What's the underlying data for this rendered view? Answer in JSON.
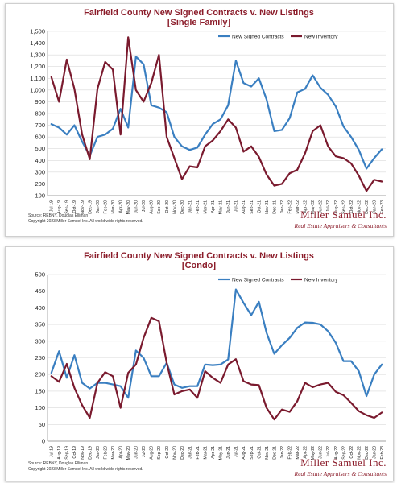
{
  "charts": [
    {
      "title_line1": "Fairfield County New Signed Contracts v. New Listings",
      "title_line2": "[Single Family]",
      "source_line1": "Source: REBNY, Douglas Elliman",
      "source_line2": "Copyright 2023 Miller Samuel Inc.  All world wide rights reserved.",
      "brand_name": "Miller Samuel Inc.",
      "brand_tagline": "Real Estate Appraisers & Consultants"
    },
    {
      "title_line1": "Fairfield County New Signed Contracts v. New Listings",
      "title_line2": "[Condo]",
      "source_line1": "Source: REBNY, Douglas Elliman",
      "source_line2": "Copyright 2023 Miller Samuel Inc.  All world wide rights reserved.",
      "brand_name": "Miller Samuel Inc.",
      "brand_tagline": "Real Estate Appraisers & Consultants"
    }
  ],
  "chart_data": [
    {
      "type": "line",
      "title": "Fairfield County New Signed Contracts v. New Listings [Single Family]",
      "x": [
        "Jul-19",
        "Aug-19",
        "Sep-19",
        "Oct-19",
        "Nov-19",
        "Dec-19",
        "Jan-20",
        "Feb-20",
        "Mar-20",
        "Apr-20",
        "May-20",
        "Jun-20",
        "Jul-20",
        "Aug-20",
        "Sep-20",
        "Oct-20",
        "Nov-20",
        "Dec-20",
        "Jan-21",
        "Feb-21",
        "Mar-21",
        "Apr-21",
        "May-21",
        "Jun-21",
        "Jul-21",
        "Aug-21",
        "Sep-21",
        "Oct-21",
        "Nov-21",
        "Dec-21",
        "Jan-22",
        "Feb-22",
        "Mar-22",
        "Apr-22",
        "May-22",
        "Jun-22",
        "Jul-22",
        "Aug-22",
        "Sep-22",
        "Oct-22",
        "Nov-22",
        "Dec-22",
        "Jan-23",
        "Feb-23"
      ],
      "ylim": [
        100,
        1500
      ],
      "yticks": [
        "100",
        "200",
        "300",
        "400",
        "500",
        "600",
        "700",
        "800",
        "900",
        "1,000",
        "1,100",
        "1,200",
        "1,300",
        "1,400",
        "1,500"
      ],
      "grid": true,
      "legend_position": "top-center",
      "series": [
        {
          "name": "New Signed Contracts",
          "color": "#3a7fc1",
          "values": [
            710,
            680,
            620,
            700,
            560,
            440,
            600,
            620,
            670,
            840,
            680,
            1285,
            1220,
            870,
            850,
            810,
            600,
            520,
            490,
            510,
            620,
            710,
            750,
            870,
            1250,
            1060,
            1030,
            1100,
            920,
            650,
            660,
            760,
            980,
            1010,
            1125,
            1020,
            960,
            860,
            690,
            600,
            490,
            330,
            420,
            495
          ]
        },
        {
          "name": "New Inventory",
          "color": "#7a1a2e",
          "values": [
            1110,
            900,
            1260,
            1010,
            620,
            410,
            1010,
            1240,
            1175,
            620,
            1450,
            1000,
            900,
            1060,
            1300,
            600,
            420,
            240,
            350,
            340,
            520,
            570,
            650,
            750,
            680,
            475,
            520,
            430,
            280,
            185,
            200,
            290,
            320,
            460,
            650,
            700,
            520,
            435,
            420,
            375,
            270,
            140,
            235,
            220
          ]
        }
      ]
    },
    {
      "type": "line",
      "title": "Fairfield County New Signed Contracts v. New Listings [Condo]",
      "x": [
        "Jul-19",
        "Aug-19",
        "Sep-19",
        "Oct-19",
        "Nov-19",
        "Dec-19",
        "Jan-20",
        "Feb-20",
        "Mar-20",
        "Apr-20",
        "May-20",
        "Jun-20",
        "Jul-20",
        "Aug-20",
        "Sep-20",
        "Oct-20",
        "Nov-20",
        "Dec-20",
        "Jan-21",
        "Feb-21",
        "Mar-21",
        "Apr-21",
        "May-21",
        "Jun-21",
        "Jul-21",
        "Aug-21",
        "Sep-21",
        "Oct-21",
        "Nov-21",
        "Dec-21",
        "Jan-22",
        "Feb-22",
        "Mar-22",
        "Apr-22",
        "May-22",
        "Jun-22",
        "Jul-22",
        "Aug-22",
        "Sep-22",
        "Oct-22",
        "Nov-22",
        "Dec-22",
        "Jan-23",
        "Feb-23"
      ],
      "ylim": [
        0,
        500
      ],
      "yticks": [
        "0",
        "50",
        "100",
        "150",
        "200",
        "250",
        "300",
        "350",
        "400",
        "450",
        "500"
      ],
      "grid": true,
      "legend_position": "top-center",
      "series": [
        {
          "name": "New Signed Contracts",
          "color": "#3a7fc1",
          "values": [
            205,
            270,
            190,
            258,
            175,
            158,
            175,
            175,
            170,
            165,
            130,
            272,
            250,
            195,
            195,
            235,
            170,
            160,
            165,
            165,
            230,
            228,
            230,
            245,
            455,
            415,
            378,
            418,
            325,
            262,
            288,
            310,
            340,
            356,
            355,
            350,
            330,
            295,
            240,
            240,
            210,
            135,
            200,
            230
          ]
        },
        {
          "name": "New Inventory",
          "color": "#7a1a2e",
          "values": [
            195,
            178,
            232,
            160,
            108,
            70,
            175,
            207,
            195,
            100,
            205,
            230,
            310,
            370,
            360,
            235,
            140,
            150,
            155,
            130,
            210,
            190,
            175,
            230,
            246,
            180,
            170,
            168,
            100,
            65,
            95,
            88,
            120,
            175,
            162,
            170,
            175,
            148,
            138,
            115,
            90,
            78,
            70,
            86
          ]
        }
      ]
    }
  ]
}
